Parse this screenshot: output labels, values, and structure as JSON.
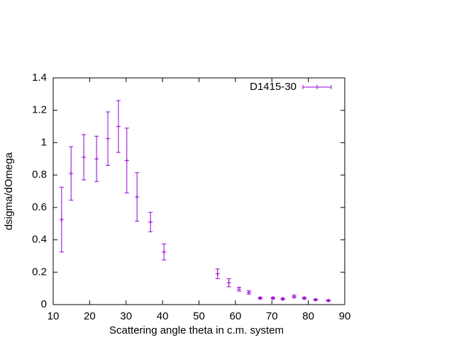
{
  "chart_data": {
    "type": "errorbar",
    "xlabel": "Scattering angle theta in c.m. system",
    "ylabel": "dsigma/dOmega",
    "xlim": [
      10,
      90
    ],
    "xticks": [
      10,
      20,
      30,
      40,
      50,
      60,
      70,
      80,
      90
    ],
    "ylim": [
      0,
      1.4
    ],
    "yticks": [
      0,
      0.2,
      0.4,
      0.6,
      0.8,
      1,
      1.2,
      1.4
    ],
    "legend": "top-right",
    "grid": false,
    "series": [
      {
        "name": "D1415-30",
        "color": "#9400d3",
        "x": [
          12.3,
          14.9,
          18.4,
          21.9,
          25.0,
          27.9,
          30.2,
          33.0,
          36.7,
          40.4,
          55.1,
          58.2,
          61.0,
          63.7,
          66.8,
          70.3,
          73.0,
          76.1,
          78.9,
          82.0,
          85.5
        ],
        "values": [
          0.525,
          0.81,
          0.91,
          0.9,
          1.025,
          1.1,
          0.89,
          0.665,
          0.51,
          0.325,
          0.19,
          0.135,
          0.095,
          0.075,
          0.04,
          0.04,
          0.035,
          0.05,
          0.04,
          0.03,
          0.025
        ],
        "errors": [
          0.2,
          0.165,
          0.14,
          0.14,
          0.165,
          0.16,
          0.2,
          0.15,
          0.06,
          0.05,
          0.03,
          0.025,
          0.012,
          0.01,
          0.005,
          0.005,
          0.005,
          0.008,
          0.005,
          0.004,
          0.004
        ]
      }
    ]
  }
}
